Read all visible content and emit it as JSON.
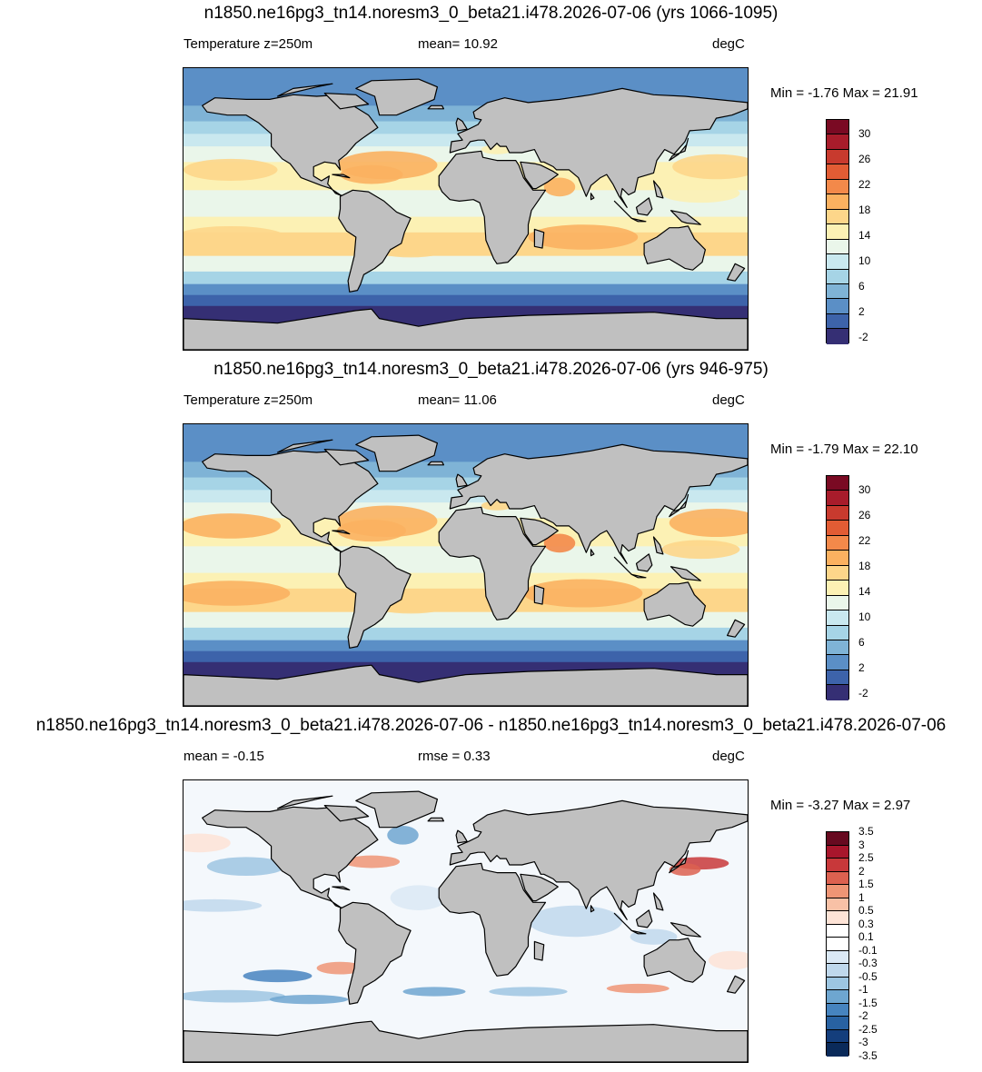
{
  "panels": [
    {
      "title": "n1850.ne16pg3_tn14.noresm3_0_beta21.i478.2026-07-06 (yrs 1066-1095)",
      "left_label": "Temperature z=250m",
      "mid_label": "mean=  10.92",
      "units": "degC",
      "minmax": "Min =  -1.76 Max =  21.91",
      "field": "temp_a",
      "colorbar": {
        "colors": [
          "#7a0a23",
          "#a81c2b",
          "#c83a2e",
          "#e25c34",
          "#f3894a",
          "#fbb160",
          "#fdd68a",
          "#fcf1b4",
          "#eaf6ea",
          "#c9e8ef",
          "#a6d4e6",
          "#7fb3d6",
          "#5b8fc6",
          "#3d63aa",
          "#352f74"
        ],
        "labels": [
          "30",
          "26",
          "22",
          "18",
          "14",
          "10",
          "6",
          "2",
          "-2"
        ]
      }
    },
    {
      "title": "n1850.ne16pg3_tn14.noresm3_0_beta21.i478.2026-07-06 (yrs 946-975)",
      "left_label": "Temperature z=250m",
      "mid_label": "mean=  11.06",
      "units": "degC",
      "minmax": "Min =  -1.79 Max =  22.10",
      "field": "temp_b",
      "colorbar": {
        "colors": [
          "#7a0a23",
          "#a81c2b",
          "#c83a2e",
          "#e25c34",
          "#f3894a",
          "#fbb160",
          "#fdd68a",
          "#fcf1b4",
          "#eaf6ea",
          "#c9e8ef",
          "#a6d4e6",
          "#7fb3d6",
          "#5b8fc6",
          "#3d63aa",
          "#352f74"
        ],
        "labels": [
          "30",
          "26",
          "22",
          "18",
          "14",
          "10",
          "6",
          "2",
          "-2"
        ]
      }
    },
    {
      "title": "n1850.ne16pg3_tn14.noresm3_0_beta21.i478.2026-07-06 - n1850.ne16pg3_tn14.noresm3_0_beta21.i478.2026-07-06",
      "left_label": "mean =  -0.15",
      "mid_label": "rmse =   0.33",
      "units": "degC",
      "minmax": "Min =  -3.27 Max =   2.97",
      "field": "diff",
      "colorbar": {
        "colors": [
          "#670a20",
          "#a8162c",
          "#c8383a",
          "#dc6150",
          "#ee9575",
          "#f8c1a6",
          "#fde3d6",
          "#ffffff",
          "#ffffff",
          "#dbe9f5",
          "#bfd8ec",
          "#9dc6e2",
          "#6ea6d0",
          "#4684bf",
          "#2862a2",
          "#143e7c",
          "#0a2a5a"
        ],
        "labels": [
          "3.5",
          "3",
          "2.5",
          "2",
          "1.5",
          "1",
          "0.5",
          "0.3",
          "0.1",
          "-0.1",
          "-0.3",
          "-0.5",
          "-1",
          "-1.5",
          "-2",
          "-2.5",
          "-3",
          "-3.5"
        ]
      }
    }
  ],
  "colors": {
    "land": "#c0c0c0",
    "coast": "#000000"
  }
}
